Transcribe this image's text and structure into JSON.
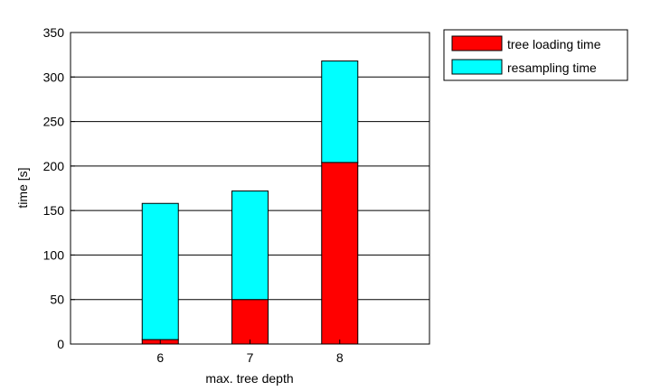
{
  "chart_data": {
    "type": "bar",
    "stacked": true,
    "title": "",
    "xlabel": "max. tree depth",
    "ylabel": "time [s]",
    "categories": [
      "6",
      "7",
      "8"
    ],
    "ylim": [
      0,
      350
    ],
    "yticks": [
      0,
      50,
      100,
      150,
      200,
      250,
      300,
      350
    ],
    "grid": "horizontal",
    "legend_position": "top-right, outside plot",
    "series": [
      {
        "name": "tree loading time",
        "values": [
          5,
          50,
          204
        ],
        "color": "#ff0000"
      },
      {
        "name": "resampling time",
        "values": [
          153,
          122,
          114
        ],
        "color": "#00ffff"
      }
    ]
  }
}
